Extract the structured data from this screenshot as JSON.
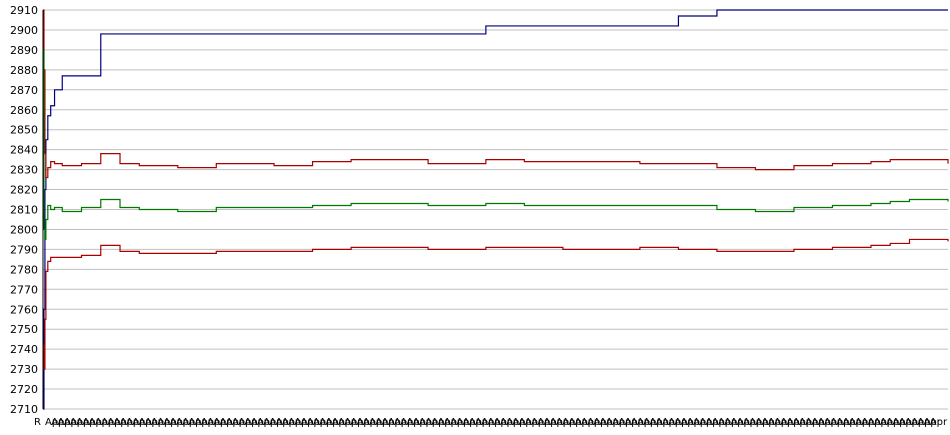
{
  "chart_data": {
    "type": "line",
    "title": "",
    "xlabel": "",
    "ylabel": "",
    "ylim": [
      2710,
      2910
    ],
    "yticks": [
      2710,
      2720,
      2730,
      2740,
      2750,
      2760,
      2770,
      2780,
      2790,
      2800,
      2810,
      2820,
      2830,
      2840,
      2850,
      2860,
      2870,
      2880,
      2890,
      2900,
      2910
    ],
    "grid": "horizontal",
    "legend": "none",
    "x_tick_labels": [
      "R",
      "Apr",
      "Apr",
      "Apr",
      "Apr",
      "Apr",
      "Apr",
      "Apr",
      "Apr",
      "Apr",
      "Apr",
      "Apr",
      "Apr",
      "Apr",
      "Apr",
      "Apr",
      "Apr",
      "Apr",
      "Apr",
      "Apr",
      "Apr",
      "Apr",
      "Apr",
      "Apr",
      "Apr",
      "Apr",
      "Apr",
      "Apr",
      "Apr",
      "Apr",
      "Apr",
      "Apr",
      "Apr",
      "Apr",
      "Apr",
      "Apr",
      "Apr",
      "Apr",
      "Apr",
      "Apr",
      "Apr",
      "Apr",
      "Apr",
      "Apr",
      "Apr",
      "Apr",
      "Apr",
      "Apr",
      "Apr",
      "Apr",
      "Apr",
      "Apr",
      "Apr",
      "Apr",
      "Apr",
      "Apr",
      "Apr",
      "Apr",
      "Apr",
      "Apr",
      "Apr",
      "Apr",
      "Apr",
      "Apr",
      "Apr",
      "Apr",
      "Apr",
      "Apr",
      "Apr",
      "Apr",
      "Apr",
      "Apr",
      "Apr",
      "Apr",
      "Apr",
      "Apr",
      "Apr",
      "Apr",
      "Apr",
      "Apr",
      "Apr",
      "Apr",
      "Apr",
      "Apr",
      "Apr",
      "Apr",
      "Apr",
      "Apr",
      "Apr",
      "Apr",
      "Apr",
      "Apr",
      "Apr",
      "Apr",
      "Apr",
      "Apr",
      "Apr",
      "Apr",
      "Apr",
      "Apr",
      "Apr",
      "Apr",
      "Apr",
      "Apr",
      "Apr",
      "Apr",
      "Apr",
      "Apr",
      "Apr",
      "Apr",
      "Apr",
      "Apr",
      "Apr",
      "Apr",
      "Apr",
      "Apr",
      "Apr",
      "Apr",
      "Apr",
      "Apr",
      "Apr",
      "Apr",
      "Apr",
      "Apr",
      "Apr",
      "Apr",
      "Apr",
      "Apr",
      "Apr",
      "Apr",
      "Apr",
      "Apr",
      "Apr",
      "Apr",
      "Apr",
      "Apr",
      "Apr",
      "Apr",
      "Apr",
      "Apr",
      "Apr",
      "Apr",
      "Apr",
      "Apr"
    ],
    "x": [
      0,
      1,
      2,
      3,
      5,
      8,
      12,
      20,
      40,
      60,
      80,
      100,
      140,
      180,
      200,
      240,
      280,
      320,
      360,
      400,
      440,
      460,
      500,
      540,
      580,
      620,
      660,
      700,
      740,
      780,
      820,
      860,
      880,
      900,
      940
    ],
    "series": [
      {
        "color": "#000080",
        "values": [
          2710,
          2760,
          2820,
          2845,
          2857,
          2862,
          2870,
          2877,
          2877,
          2898,
          2898,
          2898,
          2898,
          2898,
          2898,
          2898,
          2898,
          2898,
          2898,
          2898,
          2898,
          2902,
          2902,
          2902,
          2902,
          2902,
          2907,
          2910,
          2910,
          2910,
          2910,
          2910,
          2910,
          2910,
          2910
        ]
      },
      {
        "color": "#aa0000",
        "values": [
          2910,
          2880,
          2838,
          2826,
          2831,
          2834,
          2833,
          2832,
          2833,
          2838,
          2833,
          2832,
          2831,
          2833,
          2833,
          2832,
          2834,
          2835,
          2835,
          2833,
          2833,
          2835,
          2834,
          2834,
          2834,
          2833,
          2833,
          2831,
          2830,
          2832,
          2833,
          2834,
          2835,
          2835,
          2833
        ]
      },
      {
        "color": "#007700",
        "values": [
          2890,
          2800,
          2795,
          2805,
          2812,
          2810,
          2811,
          2809,
          2811,
          2815,
          2811,
          2810,
          2809,
          2811,
          2811,
          2811,
          2812,
          2813,
          2813,
          2812,
          2812,
          2813,
          2812,
          2812,
          2812,
          2812,
          2812,
          2810,
          2809,
          2811,
          2812,
          2813,
          2814,
          2815,
          2814
        ]
      },
      {
        "color": "#aa0000",
        "values": [
          2742,
          2730,
          2755,
          2779,
          2784,
          2786,
          2786,
          2786,
          2787,
          2792,
          2789,
          2788,
          2788,
          2789,
          2789,
          2789,
          2790,
          2791,
          2791,
          2790,
          2790,
          2791,
          2791,
          2790,
          2790,
          2791,
          2790,
          2789,
          2789,
          2790,
          2791,
          2792,
          2793,
          2795,
          2794
        ]
      }
    ]
  }
}
